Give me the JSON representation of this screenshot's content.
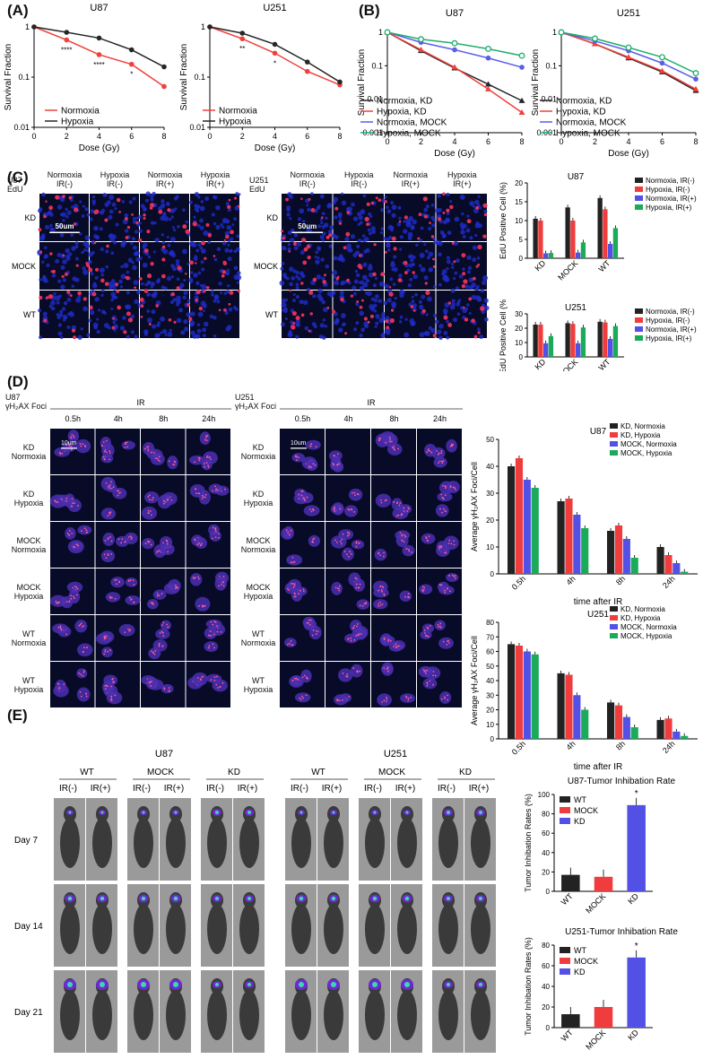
{
  "panels": {
    "A": "(A)",
    "B": "(B)",
    "C": "(C)",
    "D": "(D)",
    "E": "(E)"
  },
  "colors": {
    "black": "#262626",
    "red": "#f0403a",
    "blue": "#5a5ee8",
    "green": "#1fae6c",
    "dark": "#222222",
    "redbar": "#f03c3c",
    "bluebar": "#5350e6",
    "greenbar": "#1aaa5a",
    "micro_bg": "#070b28",
    "micro_blue": "#1f2cc8",
    "micro_red": "#e0305a"
  },
  "chart_data": [
    {
      "id": "A-U87",
      "type": "line",
      "title": "U87",
      "xlabel": "Dose (Gy)",
      "ylabel": "Survival Fraction",
      "ylog": true,
      "xlim": [
        0,
        8
      ],
      "ylim": [
        0.01,
        1
      ],
      "xticks": [
        "0",
        "2",
        "4",
        "6",
        "8"
      ],
      "yticks": [
        "0.01",
        "0.1",
        "1"
      ],
      "x": [
        0,
        2,
        4,
        6,
        8
      ],
      "series": [
        {
          "name": "Normoxia",
          "color": "red",
          "values": [
            1,
            0.55,
            0.28,
            0.18,
            0.065
          ],
          "sig": [
            "",
            "****",
            "****",
            "*",
            ""
          ]
        },
        {
          "name": "Hypoxia",
          "color": "black",
          "values": [
            1,
            0.78,
            0.6,
            0.35,
            0.16
          ]
        }
      ]
    },
    {
      "id": "A-U251",
      "type": "line",
      "title": "U251",
      "xlabel": "Dose (Gy)",
      "ylabel": "Survival Fraction",
      "ylog": true,
      "xlim": [
        0,
        8
      ],
      "ylim": [
        0.01,
        1
      ],
      "xticks": [
        "0",
        "2",
        "4",
        "6",
        "8"
      ],
      "yticks": [
        "0.01",
        "0.1",
        "1"
      ],
      "x": [
        0,
        2,
        4,
        6,
        8
      ],
      "series": [
        {
          "name": "Normoxia",
          "color": "red",
          "values": [
            1,
            0.58,
            0.3,
            0.13,
            0.07
          ],
          "sig": [
            "",
            "**",
            "*",
            "",
            ""
          ]
        },
        {
          "name": "Hypoxia",
          "color": "black",
          "values": [
            1,
            0.75,
            0.45,
            0.2,
            0.08
          ]
        }
      ]
    },
    {
      "id": "B-U87",
      "type": "line",
      "title": "U87",
      "xlabel": "Dose (Gy)",
      "ylabel": "Survival Fraction",
      "ylog": true,
      "xlim": [
        0,
        8
      ],
      "ylim": [
        0.001,
        1
      ],
      "xticks": [
        "0",
        "2",
        "4",
        "6",
        "8"
      ],
      "yticks": [
        "0.001",
        "0.01",
        "0.1",
        "1"
      ],
      "x": [
        0,
        2,
        4,
        6,
        8
      ],
      "series": [
        {
          "name": "Normoxia, KD",
          "color": "black",
          "marker": "tri",
          "values": [
            1,
            0.28,
            0.085,
            0.028,
            0.009
          ]
        },
        {
          "name": "Hypoxia, KD",
          "color": "red",
          "marker": "tri",
          "values": [
            1,
            0.3,
            0.09,
            0.02,
            0.004
          ]
        },
        {
          "name": "Normoxia, MOCK",
          "color": "blue",
          "marker": "dot",
          "values": [
            1,
            0.5,
            0.3,
            0.17,
            0.09
          ]
        },
        {
          "name": "Hypoxia, MOCK",
          "color": "green",
          "marker": "circle",
          "values": [
            1,
            0.62,
            0.47,
            0.32,
            0.2
          ]
        }
      ]
    },
    {
      "id": "B-U251",
      "type": "line",
      "title": "U251",
      "xlabel": "Dose (Gy)",
      "ylabel": "Survival Fraction",
      "ylog": true,
      "xlim": [
        0,
        8
      ],
      "ylim": [
        0.001,
        1
      ],
      "xticks": [
        "0",
        "2",
        "4",
        "6",
        "8"
      ],
      "yticks": [
        "0.001",
        "0.01",
        "0.1",
        "1"
      ],
      "x": [
        0,
        2,
        4,
        6,
        8
      ],
      "series": [
        {
          "name": "Normoxia, KD",
          "color": "black",
          "marker": "tri",
          "values": [
            1,
            0.45,
            0.17,
            0.065,
            0.018
          ]
        },
        {
          "name": "Hypoxia, KD",
          "color": "red",
          "marker": "tri",
          "values": [
            1,
            0.45,
            0.18,
            0.07,
            0.02
          ]
        },
        {
          "name": "Normoxia, MOCK",
          "color": "blue",
          "marker": "dot",
          "values": [
            1,
            0.55,
            0.28,
            0.12,
            0.04
          ]
        },
        {
          "name": "Hypoxia, MOCK",
          "color": "green",
          "marker": "circle",
          "values": [
            1,
            0.65,
            0.35,
            0.18,
            0.06
          ]
        }
      ]
    },
    {
      "id": "C-U87",
      "type": "bar",
      "title": "U87",
      "ylabel": "EdU Positive Cell (%)",
      "categories": [
        "KD",
        "MOCK",
        "WT"
      ],
      "ylim": [
        0,
        20
      ],
      "yticks": [
        "0",
        "5",
        "10",
        "15",
        "20"
      ],
      "series": [
        {
          "name": "Normoxia, IR(-)",
          "color": "dark",
          "values": [
            10.5,
            13.5,
            16
          ]
        },
        {
          "name": "Hypoxia, IR(-)",
          "color": "redbar",
          "values": [
            10,
            10,
            13
          ]
        },
        {
          "name": "Normoxia, IR(+)",
          "color": "bluebar",
          "values": [
            1.3,
            1.5,
            3.8
          ]
        },
        {
          "name": "Hypoxia, IR(+)",
          "color": "greenbar",
          "values": [
            1.4,
            4.2,
            8
          ]
        }
      ]
    },
    {
      "id": "C-U251",
      "type": "bar",
      "title": "U251",
      "ylabel": "EdU Positive Cell (%)",
      "categories": [
        "KD",
        "MOCK",
        "WT"
      ],
      "ylim": [
        0,
        30
      ],
      "yticks": [
        "0",
        "10",
        "20",
        "30"
      ],
      "series": [
        {
          "name": "Normoxia, IR(-)",
          "color": "dark",
          "values": [
            22.5,
            23.5,
            24.5
          ]
        },
        {
          "name": "Hypoxia, IR(-)",
          "color": "redbar",
          "values": [
            22.5,
            23,
            24
          ]
        },
        {
          "name": "Normoxia, IR(+)",
          "color": "bluebar",
          "values": [
            9.5,
            9.5,
            12.5
          ]
        },
        {
          "name": "Hypoxia, IR(+)",
          "color": "greenbar",
          "values": [
            14.5,
            20.5,
            21.5
          ]
        }
      ]
    },
    {
      "id": "D-U87",
      "type": "bar",
      "title": "U87",
      "xlabel": "time after IR",
      "ylabel": "Average γH₂AX Foci/Cell",
      "categories": [
        "0.5h",
        "4h",
        "8h",
        "24h"
      ],
      "ylim": [
        0,
        50
      ],
      "yticks": [
        "0",
        "10",
        "20",
        "30",
        "40",
        "50"
      ],
      "series": [
        {
          "name": "KD, Normoxia",
          "color": "dark",
          "values": [
            40,
            27,
            16,
            10
          ]
        },
        {
          "name": "KD, Hypoxia",
          "color": "redbar",
          "values": [
            43,
            28,
            18,
            7
          ]
        },
        {
          "name": "MOCK, Normoxia",
          "color": "bluebar",
          "values": [
            35,
            22,
            13,
            4
          ]
        },
        {
          "name": "MOCK, Hypoxia",
          "color": "greenbar",
          "values": [
            32,
            17,
            6,
            0.8
          ]
        }
      ]
    },
    {
      "id": "D-U251",
      "type": "bar",
      "title": "U251",
      "xlabel": "time after IR",
      "ylabel": "Average γH₂AX Foci/Cell",
      "categories": [
        "0.5h",
        "4h",
        "8h",
        "24h"
      ],
      "ylim": [
        0,
        80
      ],
      "yticks": [
        "0",
        "10",
        "20",
        "30",
        "40",
        "50",
        "60",
        "70",
        "80"
      ],
      "series": [
        {
          "name": "KD, Normoxia",
          "color": "dark",
          "values": [
            65,
            45,
            25,
            13
          ]
        },
        {
          "name": "KD, Hypoxia",
          "color": "redbar",
          "values": [
            64,
            44,
            23,
            14
          ]
        },
        {
          "name": "MOCK, Normoxia",
          "color": "bluebar",
          "values": [
            60,
            30,
            15,
            5
          ]
        },
        {
          "name": "MOCK, Hypoxia",
          "color": "greenbar",
          "values": [
            58,
            20,
            8,
            2
          ]
        }
      ]
    },
    {
      "id": "E-U87",
      "type": "bar",
      "title": "U87-Tumor Inhibation Rate",
      "ylabel": "Tumor Inhibation Rates (%)",
      "categories": [
        "WT",
        "MOCK",
        "KD"
      ],
      "ylim": [
        0,
        100
      ],
      "yticks": [
        "0",
        "20",
        "40",
        "60",
        "80",
        "100"
      ],
      "values": [
        17,
        15,
        89
      ],
      "colors": [
        "dark",
        "redbar",
        "bluebar"
      ],
      "legend": [
        "WT",
        "MOCK",
        "KD"
      ],
      "sig": [
        "",
        "",
        "*"
      ]
    },
    {
      "id": "E-U251",
      "type": "bar",
      "title": "U251-Tumor Inhibation Rate",
      "ylabel": "Tumor Inhibation Rates (%)",
      "categories": [
        "WT",
        "MOCK",
        "KD"
      ],
      "ylim": [
        0,
        80
      ],
      "yticks": [
        "0",
        "20",
        "40",
        "60",
        "80"
      ],
      "values": [
        13,
        20,
        68
      ],
      "colors": [
        "dark",
        "redbar",
        "bluebar"
      ],
      "legend": [
        "WT",
        "MOCK",
        "KD"
      ],
      "sig": [
        "",
        "",
        "*"
      ]
    }
  ],
  "micrographs": {
    "C": {
      "U87": {
        "corner": "U87\nEdU",
        "cols": [
          "Normoxia\nIR(-)",
          "Hypoxia\nIR(-)",
          "Normoxia\nIR(+)",
          "Hypoxia\nIR(+)"
        ],
        "rows": [
          "KD",
          "MOCK",
          "WT"
        ],
        "scale": "50um"
      },
      "U251": {
        "corner": "U251\nEdU",
        "cols": [
          "Normoxia\nIR(-)",
          "Hypoxia\nIR(-)",
          "Normoxia\nIR(+)",
          "Hypoxia\nIR(+)"
        ],
        "rows": [
          "KD",
          "MOCK",
          "WT"
        ],
        "scale": "50um"
      }
    },
    "D": {
      "U87": {
        "corner": "U87\nγH₂AX Foci",
        "ir": "IR",
        "cols": [
          "0.5h",
          "4h",
          "8h",
          "24h"
        ],
        "rows": [
          "KD\nNormoxia",
          "KD\nHypoxia",
          "MOCK\nNormoxia",
          "MOCK\nHypoxia",
          "WT\nNormoxia",
          "WT\nHypoxia"
        ],
        "scale": "10um"
      },
      "U251": {
        "corner": "U251\nγH₂AX Foci",
        "ir": "IR",
        "cols": [
          "0.5h",
          "4h",
          "8h",
          "24h"
        ],
        "rows": [
          "KD\nNormoxia",
          "KD\nHypoxia",
          "MOCK\nNormoxia",
          "MOCK\nHypoxia",
          "WT\nNormoxia",
          "WT\nHypoxia"
        ],
        "scale": "10um"
      }
    },
    "E": {
      "U87": {
        "title": "U87",
        "groups": [
          "WT",
          "MOCK",
          "KD"
        ],
        "sub": [
          "IR(-)",
          "IR(+)"
        ]
      },
      "U251": {
        "title": "U251",
        "groups": [
          "WT",
          "MOCK",
          "KD"
        ],
        "sub": [
          "IR(-)",
          "IR(+)"
        ]
      },
      "days": [
        "Day 7",
        "Day 14",
        "Day 21"
      ]
    }
  }
}
